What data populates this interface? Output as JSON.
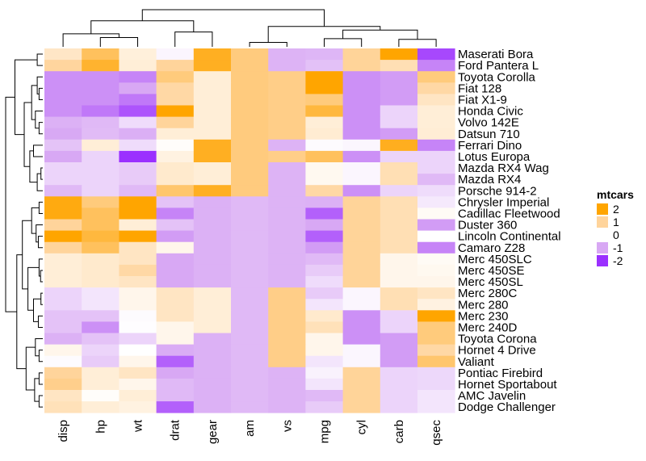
{
  "chart_data": {
    "type": "heatmap",
    "title": "",
    "xlabel": "",
    "ylabel": "",
    "columns": [
      "disp",
      "hp",
      "wt",
      "drat",
      "gear",
      "am",
      "vs",
      "mpg",
      "cyl",
      "carb",
      "qsec"
    ],
    "rows": [
      "Maserati Bora",
      "Ford Pantera L",
      "Toyota Corolla",
      "Fiat 128",
      "Fiat X1-9",
      "Honda Civic",
      "Volvo 142E",
      "Datsun 710",
      "Ferrari Dino",
      "Lotus Europa",
      "Mazda RX4 Wag",
      "Mazda RX4",
      "Porsche 914-2",
      "Chrysler Imperial",
      "Cadillac Fleetwood",
      "Duster 360",
      "Lincoln Continental",
      "Camaro Z28",
      "Merc 450SLC",
      "Merc 450SE",
      "Merc 450SL",
      "Merc 280C",
      "Merc 280",
      "Merc 230",
      "Merc 240D",
      "Toyota Corona",
      "Hornet 4 Drive",
      "Valiant",
      "Pontiac Firebird",
      "Hornet Sportabout",
      "AMC Javelin",
      "Dodge Challenger"
    ],
    "values": [
      [
        0.57,
        1.4,
        0.36,
        -0.11,
        1.78,
        1.19,
        -0.87,
        -0.84,
        1.01,
        2.0,
        -1.8
      ],
      [
        0.97,
        1.7,
        0.4,
        1.0,
        1.78,
        1.19,
        -0.87,
        -0.71,
        1.01,
        0.75,
        -1.3
      ],
      [
        -1.2,
        -1.2,
        -1.3,
        1.2,
        0.4,
        1.19,
        1.12,
        2.2,
        -1.2,
        -1.1,
        1.2
      ],
      [
        -1.2,
        -1.2,
        -1.0,
        0.9,
        0.4,
        1.19,
        1.12,
        2.0,
        -1.2,
        -1.1,
        0.9
      ],
      [
        -1.2,
        -1.2,
        -1.4,
        0.9,
        0.4,
        1.19,
        1.12,
        1.2,
        -1.2,
        -1.1,
        0.6
      ],
      [
        -1.2,
        -1.4,
        -1.7,
        2.5,
        0.4,
        1.19,
        1.12,
        1.6,
        -1.2,
        -0.5,
        0.4
      ],
      [
        -0.9,
        -0.8,
        -0.4,
        1.0,
        0.4,
        1.19,
        1.12,
        0.4,
        -1.2,
        -0.5,
        0.4
      ],
      [
        -0.99,
        -0.78,
        -0.92,
        0.4,
        0.4,
        1.19,
        1.12,
        0.45,
        -1.2,
        -1.1,
        0.42
      ],
      [
        -0.69,
        0.4,
        -0.4,
        0.05,
        1.78,
        1.19,
        -0.87,
        -0.05,
        -0.1,
        1.8,
        -1.3
      ],
      [
        -1.0,
        -0.5,
        -2.2,
        0.3,
        1.78,
        1.19,
        1.12,
        1.4,
        -1.2,
        -0.5,
        -0.5
      ],
      [
        -0.5,
        -0.5,
        -0.6,
        0.5,
        0.4,
        1.19,
        -0.87,
        0.15,
        -0.1,
        0.75,
        -0.5
      ],
      [
        -0.5,
        -0.5,
        -0.6,
        0.5,
        0.4,
        1.19,
        -0.87,
        0.15,
        -0.1,
        0.75,
        -0.8
      ],
      [
        -0.8,
        -0.5,
        -0.8,
        1.3,
        1.78,
        1.19,
        -0.87,
        0.9,
        -1.2,
        -0.5,
        -0.4
      ],
      [
        1.9,
        1.2,
        2.2,
        -0.7,
        -0.9,
        -0.8,
        -0.87,
        -0.9,
        1.01,
        0.75,
        -0.25
      ],
      [
        1.9,
        1.4,
        2.1,
        -1.3,
        -0.9,
        -0.8,
        -0.87,
        -1.6,
        1.01,
        0.75,
        0.1
      ],
      [
        1.0,
        1.4,
        0.4,
        -0.7,
        -0.9,
        -0.8,
        -0.87,
        -1.0,
        1.01,
        0.75,
        -1.1
      ],
      [
        2.0,
        1.6,
        2.3,
        -1.1,
        -0.9,
        -0.8,
        -0.87,
        -1.6,
        1.01,
        0.75,
        0.0
      ],
      [
        1.0,
        1.4,
        0.6,
        0.2,
        -0.9,
        -0.8,
        -0.87,
        -1.1,
        1.01,
        0.75,
        -1.3
      ],
      [
        0.4,
        0.5,
        0.6,
        -1.0,
        -0.9,
        -0.8,
        -0.87,
        -0.8,
        1.01,
        0.2,
        0.1
      ],
      [
        0.4,
        0.5,
        0.9,
        -1.0,
        -0.9,
        -0.8,
        -0.87,
        -0.6,
        1.01,
        0.2,
        0.15
      ],
      [
        0.4,
        0.5,
        0.6,
        -1.0,
        -0.9,
        -0.8,
        -0.87,
        -0.4,
        1.01,
        0.2,
        0.2
      ],
      [
        -0.5,
        -0.3,
        0.2,
        0.6,
        0.4,
        -0.8,
        1.12,
        -0.6,
        -0.1,
        0.75,
        0.6
      ],
      [
        -0.5,
        -0.3,
        0.2,
        0.6,
        0.4,
        -0.8,
        1.12,
        -0.3,
        -0.1,
        0.75,
        0.3
      ],
      [
        -0.7,
        -0.7,
        -0.05,
        0.6,
        0.4,
        -0.8,
        1.12,
        0.5,
        -1.2,
        -0.5,
        2.8
      ],
      [
        -0.7,
        -1.2,
        -0.02,
        0.2,
        0.4,
        -0.8,
        1.12,
        0.7,
        -1.2,
        -0.5,
        1.2
      ],
      [
        -0.9,
        -0.7,
        -0.5,
        0.2,
        -0.9,
        -0.8,
        1.12,
        0.2,
        -1.2,
        -1.1,
        1.2
      ],
      [
        0.2,
        -0.5,
        -0.0,
        -0.95,
        -0.9,
        -0.8,
        1.12,
        0.2,
        -0.1,
        -1.1,
        0.9
      ],
      [
        -0.05,
        -0.6,
        0.2,
        -1.6,
        -0.9,
        -0.8,
        1.12,
        -0.3,
        -0.1,
        -1.1,
        1.3
      ],
      [
        1.0,
        0.4,
        0.6,
        -1.0,
        -0.9,
        -0.8,
        -0.87,
        -0.15,
        1.01,
        -0.5,
        -0.45
      ],
      [
        1.1,
        0.4,
        0.2,
        -0.8,
        -0.9,
        -0.8,
        -0.87,
        -0.3,
        1.01,
        -0.5,
        -0.45
      ],
      [
        0.6,
        0.05,
        0.4,
        -0.8,
        -0.9,
        -0.8,
        -0.87,
        -0.8,
        1.01,
        -0.5,
        -0.3
      ],
      [
        0.7,
        0.4,
        0.3,
        -1.6,
        -0.9,
        -0.8,
        -0.87,
        -0.6,
        1.01,
        -0.5,
        -0.3
      ]
    ],
    "color_scale": {
      "stops": [
        -2,
        -1,
        0,
        1,
        2
      ],
      "colors": [
        "#9b30ff",
        "#d8a8f4",
        "#ffffff",
        "#ffd49b",
        "#ffa500"
      ]
    },
    "legend": {
      "title": "mtcars",
      "labels": [
        "2",
        "1",
        "0",
        "-1",
        "-2"
      ],
      "values": [
        2,
        1,
        0,
        -1,
        -2
      ],
      "position": "right"
    },
    "dendrograms": {
      "rows": "left",
      "columns": "top"
    }
  }
}
